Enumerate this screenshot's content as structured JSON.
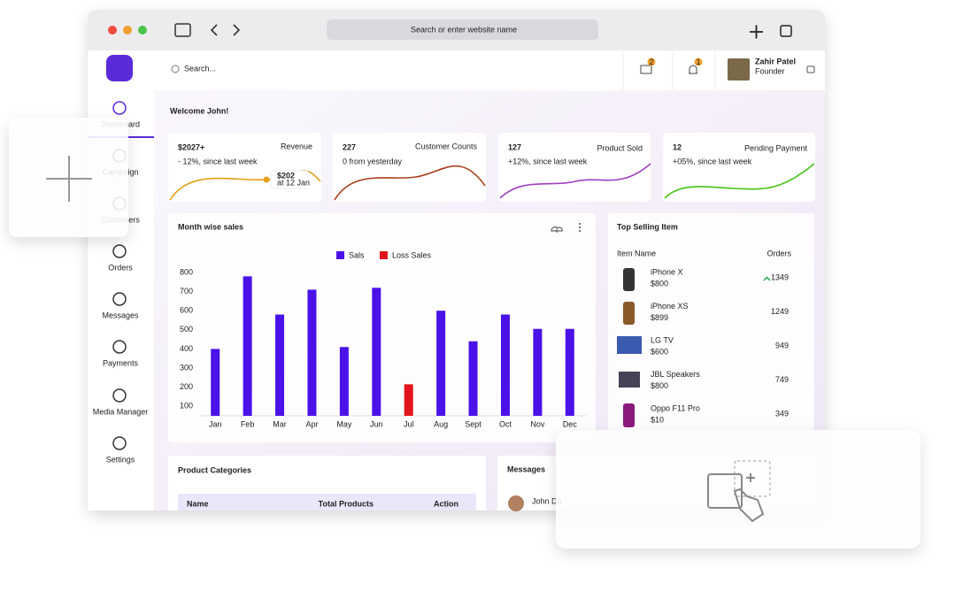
{
  "browser": {
    "address": "Search or enter website name"
  },
  "sidebar": {
    "items": [
      "Dashboard",
      "Campaign",
      "Customers",
      "Orders",
      "Messages",
      "Payments",
      "Media Manager",
      "Settings"
    ]
  },
  "header": {
    "search": "Search...",
    "mail_badge": "2",
    "bell_badge": "1",
    "user_name": "Zahir Patel",
    "user_role": "Founder"
  },
  "welcome": "Welcome John!",
  "stat_cards": [
    {
      "value": "$2027+",
      "label": "Revenue",
      "change": "- 12%, since last week",
      "tooltip_value": "$202",
      "tooltip_date": "at 12 Jan"
    },
    {
      "value": "227",
      "label": "Customer Counts",
      "change": "0 from yesterday"
    },
    {
      "value": "127",
      "label": "Product Sold",
      "change": "+12%, since last week"
    },
    {
      "value": "12",
      "label": "Pending Payment",
      "change": "+05%, since last week"
    }
  ],
  "chart_data": {
    "type": "bar",
    "title": "Month wise sales",
    "categories": [
      "Jan",
      "Feb",
      "Mar",
      "Apr",
      "May",
      "Jun",
      "Jul",
      "Aug",
      "Sept",
      "Oct",
      "Nov",
      "Dec"
    ],
    "series": [
      {
        "name": "Sals",
        "color": "#4a12e8",
        "values": [
          400,
          780,
          580,
          710,
          410,
          720,
          null,
          600,
          440,
          580,
          505,
          505
        ]
      },
      {
        "name": "Loss Sales",
        "color": "#e3141b",
        "values": [
          null,
          null,
          null,
          null,
          null,
          null,
          215,
          null,
          null,
          null,
          null,
          null
        ]
      }
    ],
    "ylim": [
      50,
      800
    ],
    "yticks": [
      100,
      200,
      300,
      400,
      500,
      600,
      700,
      800
    ]
  },
  "top_selling": {
    "title": "Top Selling Item",
    "columns": [
      "Item Name",
      "Orders"
    ],
    "rows": [
      {
        "name": "iPhone X",
        "price": "$800",
        "orders": 1349
      },
      {
        "name": "iPhone XS",
        "price": "$899",
        "orders": 1249
      },
      {
        "name": "LG TV",
        "price": "$600",
        "orders": 949
      },
      {
        "name": "JBL Speakers",
        "price": "$800",
        "orders": 749
      },
      {
        "name": "Oppo F11 Pro",
        "price": "$10",
        "orders": 349
      }
    ]
  },
  "product_categories": {
    "title": "Product Categories",
    "columns": [
      "Name",
      "Total Products",
      "Action"
    ]
  },
  "messages": {
    "title": "Messages",
    "items": [
      {
        "name": "John Do"
      }
    ]
  }
}
